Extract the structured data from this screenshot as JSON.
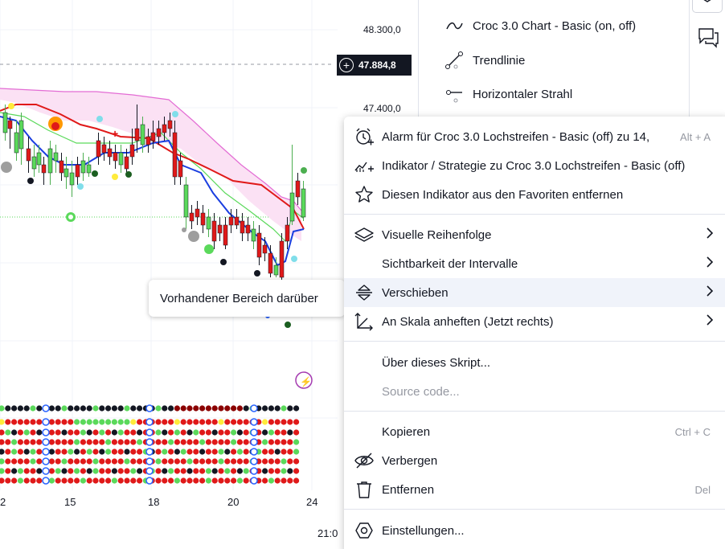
{
  "price_scale": {
    "labels": [
      "48.300,0",
      "47.400,0"
    ],
    "current_price": "47.884,8"
  },
  "time_scale": {
    "dates": [
      "2",
      "15",
      "18",
      "20",
      "24"
    ],
    "time_label": "21:0"
  },
  "tooltip": {
    "text": "Vorhandener Bereich darüber"
  },
  "side_panel": {
    "items": [
      {
        "label": "Croc 3.0 Chart - Basic (on, off)",
        "icon": "wave-icon"
      },
      {
        "label": "Trendlinie",
        "icon": "trendline-icon"
      },
      {
        "label": "Horizontaler Strahl",
        "icon": "horizontal-ray-icon"
      }
    ]
  },
  "right_toolbar": {
    "icons": [
      "layers-icon",
      "chat-icon"
    ]
  },
  "context_menu": {
    "items": [
      {
        "label": "Alarm für Croc 3.0 Lochstreifen - Basic (off) zu 14,",
        "shortcut": "Alt + A",
        "icon": "alarm-add-icon"
      },
      {
        "label": "Indikator / Strategie zu Croc 3.0 Lochstreifen - Basic (off)",
        "icon": "indicator-add-icon"
      },
      {
        "label": "Diesen Indikator aus den Favoriten entfernen",
        "icon": "star-icon"
      },
      {
        "label": "Visuelle Reihenfolge",
        "icon": "layers-icon",
        "submenu": true
      },
      {
        "label": "Sichtbarkeit der Intervalle",
        "submenu": true
      },
      {
        "label": "Verschieben",
        "icon": "move-icon",
        "submenu": true,
        "active": true
      },
      {
        "label": "An Skala anheften (Jetzt rechts)",
        "icon": "pin-scale-icon",
        "submenu": true
      },
      {
        "label": "Über dieses Skript..."
      },
      {
        "label": "Source code...",
        "disabled": true
      },
      {
        "label": "Kopieren",
        "shortcut": "Ctrl + C"
      },
      {
        "label": "Verbergen",
        "icon": "eye-off-icon"
      },
      {
        "label": "Entfernen",
        "shortcut": "Del",
        "icon": "trash-icon"
      },
      {
        "label": "Einstellungen...",
        "icon": "settings-icon"
      }
    ]
  },
  "colors": {
    "bull": "#5bd95b",
    "bear": "#e01919",
    "cloud": "#f9d7f0",
    "accent": "#2962ff"
  }
}
